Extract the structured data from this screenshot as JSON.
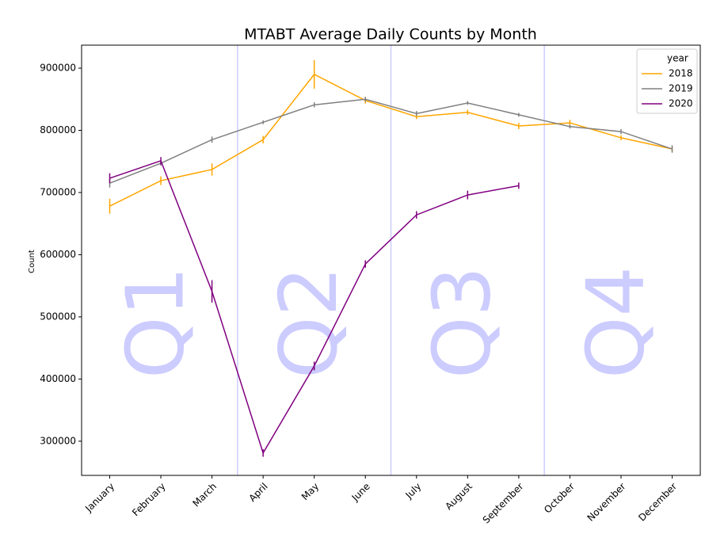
{
  "chart_data": {
    "type": "line",
    "title": "MTABT Average Daily Counts by Month",
    "y_label": "Count",
    "categories": [
      "January",
      "February",
      "March",
      "April",
      "May",
      "June",
      "July",
      "August",
      "September",
      "October",
      "November",
      "December"
    ],
    "series": [
      {
        "name": "2018",
        "color": "#ffa500",
        "values": [
          678000,
          719000,
          737000,
          785000,
          890000,
          848000,
          822000,
          829000,
          807000,
          812000,
          788000,
          770000
        ],
        "errors": [
          12000,
          7000,
          10000,
          6000,
          23000,
          5000,
          4000,
          4000,
          5000,
          5000,
          4000,
          4000
        ]
      },
      {
        "name": "2019",
        "color": "#808080",
        "values": [
          715000,
          747000,
          785000,
          813000,
          841000,
          850000,
          827000,
          844000,
          825000,
          806000,
          798000,
          770000
        ],
        "errors": [
          7000,
          4000,
          5000,
          3000,
          4000,
          4000,
          4000,
          3000,
          3000,
          3000,
          4000,
          6000
        ]
      },
      {
        "name": "2020",
        "color": "#800080",
        "values": [
          723000,
          751000,
          541000,
          281000,
          421000,
          585000,
          664000,
          696000,
          711000,
          null,
          null,
          null
        ],
        "errors": [
          8000,
          6000,
          18000,
          6000,
          7000,
          6000,
          6000,
          7000,
          5000,
          null,
          null,
          null
        ]
      }
    ],
    "legend_title": "year",
    "legend": "upper right",
    "annotations": [
      "Q1",
      "Q2",
      "Q3",
      "Q4"
    ],
    "annotation_color": "#ccccff",
    "divider_color": "#ccccff",
    "ylim": [
      245000,
      937000
    ],
    "yticks": [
      300000,
      400000,
      500000,
      600000,
      700000,
      800000,
      900000
    ],
    "grid": false
  }
}
